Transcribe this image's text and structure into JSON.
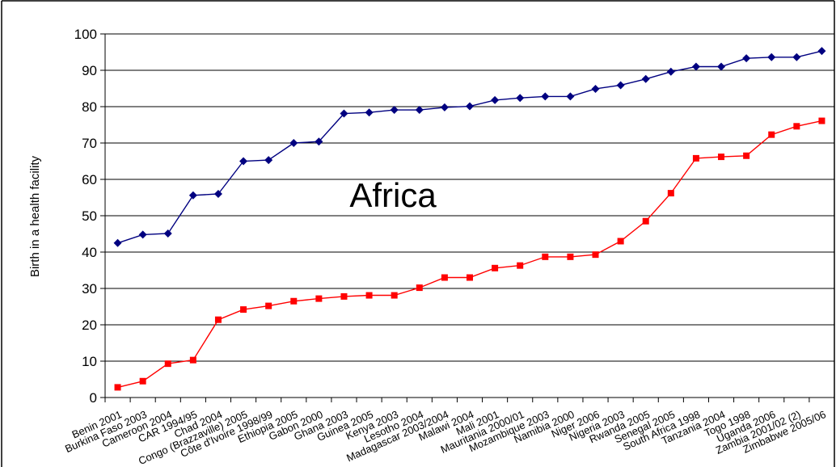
{
  "chart_data": {
    "type": "line",
    "annotation": "Africa",
    "ylabel": "Birth in a health facility",
    "xlabel": "",
    "ylim": [
      0,
      100
    ],
    "yticks": [
      0,
      10,
      20,
      30,
      40,
      50,
      60,
      70,
      80,
      90,
      100
    ],
    "grid": true,
    "legend": "none",
    "categories": [
      "Benin 2001",
      "Burkina Faso 2003",
      "Cameroon 2004",
      "CAR 1994/95",
      "Chad 2004",
      "Congo (Brazzaville) 2005",
      "Côte d'Ivoire 1998/99",
      "Ethiopia 2005",
      "Gabon 2000",
      "Ghana 2003",
      "Guinea 2005",
      "Kenya 2003",
      "Lesotho 2004",
      "Madagascar 2003/2004",
      "Malawi 2004",
      "Mali 2001",
      "Mauritania 2000/01",
      "Mozambique 2003",
      "Namibia 2000",
      "Niger 2006",
      "Nigeria 2003",
      "Rwanda 2005",
      "Senegal 2005",
      "South Africa 1998",
      "Tanzania 2004",
      "Togo 1998",
      "Uganda 2006",
      "Zambia 2001/02 (2)",
      "Zimbabwe 2005/06"
    ],
    "series": [
      {
        "color": "#000080",
        "marker": "diamond",
        "values": [
          42.5,
          44.8,
          45.1,
          55.6,
          56.0,
          65.0,
          65.3,
          70.0,
          70.4,
          78.1,
          78.4,
          79.1,
          79.1,
          79.8,
          80.1,
          81.8,
          82.4,
          82.8,
          82.8,
          84.9,
          85.9,
          87.6,
          89.6,
          91.0,
          91.0,
          93.3,
          93.6,
          93.6,
          95.3
        ]
      },
      {
        "color": "#ff0000",
        "marker": "square",
        "values": [
          2.8,
          4.5,
          9.3,
          10.3,
          21.4,
          24.2,
          25.2,
          26.5,
          27.2,
          27.8,
          28.1,
          28.1,
          30.2,
          33.0,
          33.0,
          35.6,
          36.3,
          38.7,
          38.7,
          39.3,
          43.0,
          48.5,
          56.2,
          65.8,
          66.2,
          66.5,
          72.3,
          74.6,
          76.1
        ]
      }
    ]
  }
}
